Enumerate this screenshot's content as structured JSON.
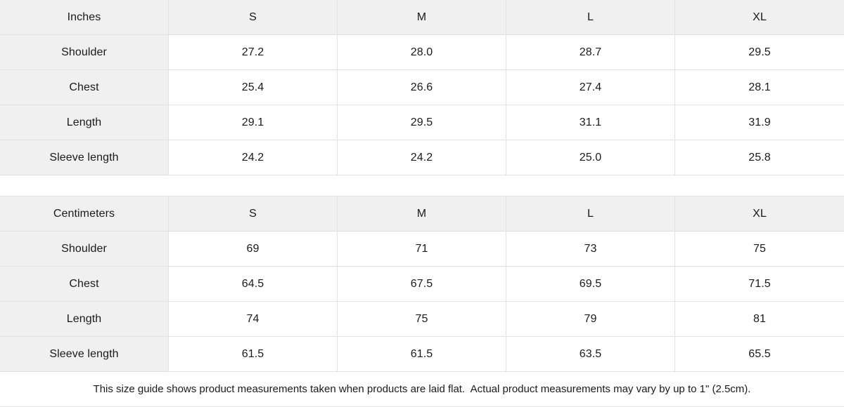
{
  "tables": [
    {
      "unit_label": "Inches",
      "size_headers": [
        "S",
        "M",
        "L",
        "XL"
      ],
      "rows": [
        {
          "label": "Shoulder",
          "values": [
            "27.2",
            "28.0",
            "28.7",
            "29.5"
          ]
        },
        {
          "label": "Chest",
          "values": [
            "25.4",
            "26.6",
            "27.4",
            "28.1"
          ]
        },
        {
          "label": "Length",
          "values": [
            "29.1",
            "29.5",
            "31.1",
            "31.9"
          ]
        },
        {
          "label": "Sleeve length",
          "values": [
            "24.2",
            "24.2",
            "25.0",
            "25.8"
          ]
        }
      ]
    },
    {
      "unit_label": "Centimeters",
      "size_headers": [
        "S",
        "M",
        "L",
        "XL"
      ],
      "rows": [
        {
          "label": "Shoulder",
          "values": [
            "69",
            "71",
            "73",
            "75"
          ]
        },
        {
          "label": "Chest",
          "values": [
            "64.5",
            "67.5",
            "69.5",
            "71.5"
          ]
        },
        {
          "label": "Length",
          "values": [
            "74",
            "75",
            "79",
            "81"
          ]
        },
        {
          "label": "Sleeve length",
          "values": [
            "61.5",
            "61.5",
            "63.5",
            "65.5"
          ]
        }
      ]
    }
  ],
  "footer": {
    "note": "This size guide shows product measurements taken when products are laid flat.  Actual product measurements may vary by up to 1\" (2.5cm)."
  },
  "colors": {
    "header_bg": "#f0f0f0",
    "label_bg": "#f0f0f0",
    "border": "#e2e2e2",
    "text": "#1a1a1a",
    "cell_bg": "#ffffff"
  },
  "chart_data": [
    {
      "type": "table",
      "title": "Inches",
      "columns": [
        "Inches",
        "S",
        "M",
        "L",
        "XL"
      ],
      "rows": [
        [
          "Shoulder",
          27.2,
          28.0,
          28.7,
          29.5
        ],
        [
          "Chest",
          25.4,
          26.6,
          27.4,
          28.1
        ],
        [
          "Length",
          29.1,
          29.5,
          31.1,
          31.9
        ],
        [
          "Sleeve length",
          24.2,
          24.2,
          25.0,
          25.8
        ]
      ]
    },
    {
      "type": "table",
      "title": "Centimeters",
      "columns": [
        "Centimeters",
        "S",
        "M",
        "L",
        "XL"
      ],
      "rows": [
        [
          "Shoulder",
          69,
          71,
          73,
          75
        ],
        [
          "Chest",
          64.5,
          67.5,
          69.5,
          71.5
        ],
        [
          "Length",
          74,
          75,
          79,
          81
        ],
        [
          "Sleeve length",
          61.5,
          61.5,
          63.5,
          65.5
        ]
      ]
    }
  ]
}
